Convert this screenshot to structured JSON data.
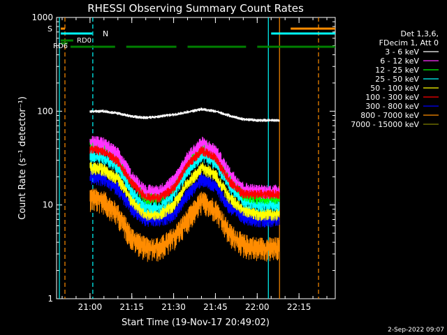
{
  "chart_data": {
    "type": "line",
    "title": "RHESSI Observing Summary Count Rates",
    "xlabel": "Start Time (19-Nov-17 20:49:02)",
    "ylabel": "Count Rate (s⁻¹ detector⁻¹)",
    "yscale": "log",
    "ylim": [
      1,
      1000
    ],
    "xlim_minutes": [
      -12,
      88
    ],
    "x_ticks": [
      {
        "m": 0,
        "label": "21:00"
      },
      {
        "m": 15,
        "label": "21:15"
      },
      {
        "m": 30,
        "label": "21:30"
      },
      {
        "m": 45,
        "label": "21:45"
      },
      {
        "m": 60,
        "label": "22:00"
      },
      {
        "m": 75,
        "label": "22:15"
      }
    ],
    "y_ticks": [
      {
        "v": 1,
        "label": "1"
      },
      {
        "v": 10,
        "label": "10"
      },
      {
        "v": 100,
        "label": "100"
      },
      {
        "v": 1000,
        "label": "1000"
      }
    ],
    "legend_header": [
      "Det 1,3,6,",
      "FDecim 1, Att 0"
    ],
    "legend_position": "right",
    "series": [
      {
        "name": "3 - 6 keV",
        "color": "#ffffff",
        "values": [
          100,
          100,
          95,
          88,
          85,
          88,
          92,
          98,
          105,
          100,
          90,
          82,
          80
        ]
      },
      {
        "name": "6 - 12 keV",
        "color": "#ff33ff",
        "values": [
          48,
          45,
          35,
          20,
          14,
          14,
          18,
          32,
          46,
          38,
          22,
          15,
          14
        ]
      },
      {
        "name": "12 - 25 keV",
        "color": "#00ff00",
        "values": [
          45,
          42,
          32,
          18,
          12,
          12,
          16,
          30,
          44,
          36,
          20,
          13,
          12
        ]
      },
      {
        "name": "25 - 50 keV",
        "color": "#00ffff",
        "values": [
          34,
          32,
          25,
          14,
          9.5,
          9.5,
          13,
          23,
          34,
          28,
          16,
          11,
          10
        ]
      },
      {
        "name": "50 - 100 keV",
        "color": "#ffff00",
        "values": [
          25,
          24,
          19,
          11,
          8,
          8,
          10,
          17,
          25,
          21,
          12,
          9,
          8
        ]
      },
      {
        "name": "100 - 300 keV",
        "color": "#ff0000",
        "values": [
          40,
          37,
          29,
          17,
          12,
          12,
          15,
          27,
          38,
          32,
          18,
          13,
          13
        ]
      },
      {
        "name": "300 - 800 keV",
        "color": "#0000ff",
        "values": [
          20,
          19,
          15,
          9,
          7,
          7,
          8,
          13,
          19,
          16,
          9.5,
          7.5,
          7
        ]
      },
      {
        "name": "800 - 7000 keV",
        "color": "#ff8c00",
        "values": [
          12,
          11,
          8,
          4.5,
          3.5,
          3.5,
          4.5,
          7,
          11,
          9,
          5,
          3.8,
          3.5
        ]
      },
      {
        "name": "7000 - 15000 keV",
        "color": "#808000",
        "values": []
      }
    ],
    "series_x_minutes": [
      0,
      5,
      10,
      15,
      20,
      25,
      30,
      35,
      40,
      45,
      50,
      55,
      60
    ],
    "annotations": {
      "s_label": "S",
      "n_label": "N",
      "rd0_label": "RD0",
      "rd6_label": "RD6"
    },
    "vlines": [
      {
        "m": -11,
        "color": "#00ffff",
        "dash": false
      },
      {
        "m": -9,
        "color": "#ff8c00",
        "dash": true
      },
      {
        "m": 1,
        "color": "#00ffff",
        "dash": true
      },
      {
        "m": 64,
        "color": "#00ffff",
        "dash": false
      },
      {
        "m": 68,
        "color": "#ff8c00",
        "dash": false
      },
      {
        "m": 82,
        "color": "#ff8c00",
        "dash": true
      }
    ],
    "footer": "2-Sep-2022 09:07"
  }
}
